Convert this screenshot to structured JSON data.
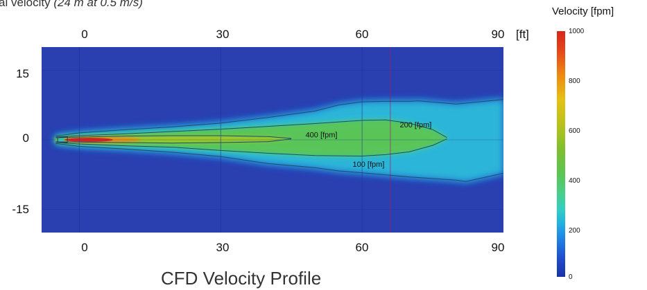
{
  "caption_fragment": {
    "text": "al velocity ",
    "italic": "(24 m at 0.5 m/s)"
  },
  "colorbar": {
    "title": "Velocity [fpm]",
    "labels": [
      "1000",
      "800",
      "600",
      "400",
      "200",
      "0"
    ]
  },
  "footer_title": "CFD Velocity Profile",
  "colors": {
    "background": "#2a3fb0",
    "low": "#1f86e6",
    "mid": "#5cc553",
    "high": "#d7261b"
  },
  "chart_data": {
    "type": "heatmap",
    "title": "CFD Velocity Profile",
    "colorscale_label": "Velocity [fpm]",
    "colorscale_range": [
      0,
      1000
    ],
    "x_unit": "[ft]",
    "xlim": [
      -8,
      90
    ],
    "ylim": [
      -20,
      20
    ],
    "x_ticks_top": [
      "0",
      "30",
      "60",
      "90"
    ],
    "x_ticks_bottom": [
      "0",
      "30",
      "60",
      "90"
    ],
    "y_ticks": [
      "15",
      "0",
      "-15"
    ],
    "contours": [
      {
        "label": "100 [fpm]",
        "value": 100,
        "upper": [
          [
            -5,
            0.8
          ],
          [
            0,
            1.5
          ],
          [
            10,
            2.2
          ],
          [
            20,
            2.8
          ],
          [
            30,
            3.6
          ],
          [
            40,
            4.8
          ],
          [
            50,
            6.2
          ],
          [
            55,
            7.5
          ],
          [
            60,
            8.2
          ],
          [
            65,
            8.3
          ],
          [
            70,
            8.3
          ],
          [
            72,
            8.4
          ],
          [
            80,
            7.7
          ],
          [
            90,
            8.7
          ]
        ],
        "lower": [
          [
            -5,
            -0.8
          ],
          [
            0,
            -1.4
          ],
          [
            10,
            -2.0
          ],
          [
            20,
            -2.7
          ],
          [
            30,
            -3.6
          ],
          [
            40,
            -5.1
          ],
          [
            50,
            -6.0
          ],
          [
            55,
            -6.7
          ],
          [
            60,
            -7.1
          ],
          [
            70,
            -8.0
          ],
          [
            80,
            -8.7
          ],
          [
            82,
            -9.0
          ],
          [
            90,
            -7.2
          ]
        ]
      },
      {
        "label": "200 [fpm]",
        "value": 200,
        "upper": [
          [
            -5,
            0.6
          ],
          [
            0,
            0.9
          ],
          [
            10,
            1.3
          ],
          [
            20,
            1.8
          ],
          [
            30,
            2.3
          ],
          [
            40,
            2.9
          ],
          [
            50,
            3.5
          ],
          [
            60,
            4.2
          ],
          [
            65,
            4.3
          ],
          [
            70,
            3.6
          ],
          [
            75,
            2.2
          ],
          [
            78,
            0.5
          ]
        ],
        "lower": [
          [
            -5,
            -0.6
          ],
          [
            0,
            -0.9
          ],
          [
            10,
            -1.3
          ],
          [
            20,
            -1.6
          ],
          [
            30,
            -2.3
          ],
          [
            40,
            -2.9
          ],
          [
            50,
            -3.4
          ],
          [
            60,
            -3.5
          ],
          [
            65,
            -3.2
          ],
          [
            70,
            -2.6
          ],
          [
            75,
            -1.2
          ],
          [
            78,
            0.2
          ]
        ]
      },
      {
        "label": "400 [fpm]",
        "value": 400,
        "upper": [
          [
            -5,
            0.4
          ],
          [
            0,
            0.6
          ],
          [
            10,
            0.8
          ],
          [
            20,
            0.9
          ],
          [
            30,
            0.9
          ],
          [
            40,
            0.7
          ],
          [
            45,
            0.3
          ]
        ],
        "lower": [
          [
            -5,
            -0.4
          ],
          [
            0,
            -0.5
          ],
          [
            10,
            -0.6
          ],
          [
            20,
            -0.7
          ],
          [
            30,
            -0.6
          ],
          [
            40,
            -0.4
          ],
          [
            45,
            0.2
          ]
        ]
      }
    ],
    "contour_labels": [
      {
        "text": "400 [fpm]",
        "x": 48,
        "y": 0.5
      },
      {
        "text": "200 [fpm]",
        "x": 68,
        "y": 2.7
      },
      {
        "text": "100 [fpm]",
        "x": 58,
        "y": -5.8
      }
    ]
  }
}
